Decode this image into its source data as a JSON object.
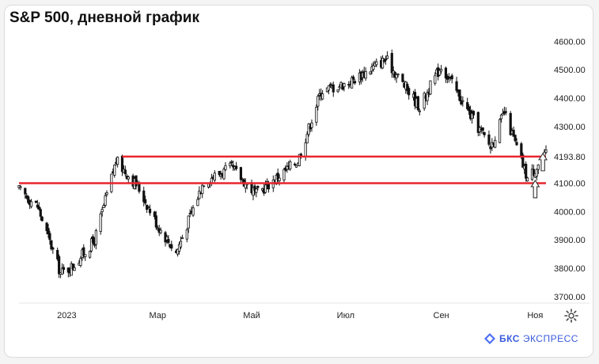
{
  "title": "S&P 500, дневной график",
  "brand": {
    "bold": "БКС",
    "rest": "ЭКСПРЕСС"
  },
  "colors": {
    "levels": "#e8262f",
    "candle_up": "#ffffff",
    "candle_down": "#111111",
    "arrow": "#333333"
  },
  "chart_data": {
    "type": "candlestick",
    "title": "S&P 500, дневной график",
    "ylim": [
      3680,
      4640
    ],
    "y_ticks": [
      "3700.00",
      "3800.00",
      "3900.00",
      "4000.00",
      "4100.00",
      "4193.80",
      "4300.00",
      "4400.00",
      "4500.00",
      "4600.00"
    ],
    "x_ticks": [
      "2023",
      "Мар",
      "Май",
      "Июл",
      "Сен",
      "Ноя"
    ],
    "x_range": [
      "2022-12-01",
      "2023-11-08"
    ],
    "levels": [
      {
        "value": 4193.8
      },
      {
        "value": 4100
      }
    ],
    "annotations": [
      {
        "type": "arrow-up",
        "date": "2023-11-01",
        "value": 4110
      },
      {
        "type": "arrow-up",
        "date": "2023-11-06",
        "value": 4205
      }
    ],
    "series_close_approx": [
      {
        "date": "2022-12-01",
        "close": 4076
      },
      {
        "date": "2022-12-13",
        "close": 4019
      },
      {
        "date": "2022-12-28",
        "close": 3783
      },
      {
        "date": "2023-01-05",
        "close": 3808
      },
      {
        "date": "2023-01-19",
        "close": 3898
      },
      {
        "date": "2023-02-02",
        "close": 4179
      },
      {
        "date": "2023-02-16",
        "close": 4090
      },
      {
        "date": "2023-03-01",
        "close": 3951
      },
      {
        "date": "2023-03-13",
        "close": 3855
      },
      {
        "date": "2023-03-31",
        "close": 4109
      },
      {
        "date": "2023-04-18",
        "close": 4154
      },
      {
        "date": "2023-05-04",
        "close": 4061
      },
      {
        "date": "2023-05-31",
        "close": 4180
      },
      {
        "date": "2023-06-15",
        "close": 4425
      },
      {
        "date": "2023-07-03",
        "close": 4455
      },
      {
        "date": "2023-07-27",
        "close": 4537
      },
      {
        "date": "2023-08-18",
        "close": 4369
      },
      {
        "date": "2023-09-01",
        "close": 4515
      },
      {
        "date": "2023-09-21",
        "close": 4330
      },
      {
        "date": "2023-10-03",
        "close": 4229
      },
      {
        "date": "2023-10-12",
        "close": 4349
      },
      {
        "date": "2023-10-27",
        "close": 4117
      },
      {
        "date": "2023-11-08",
        "close": 4200
      }
    ]
  }
}
